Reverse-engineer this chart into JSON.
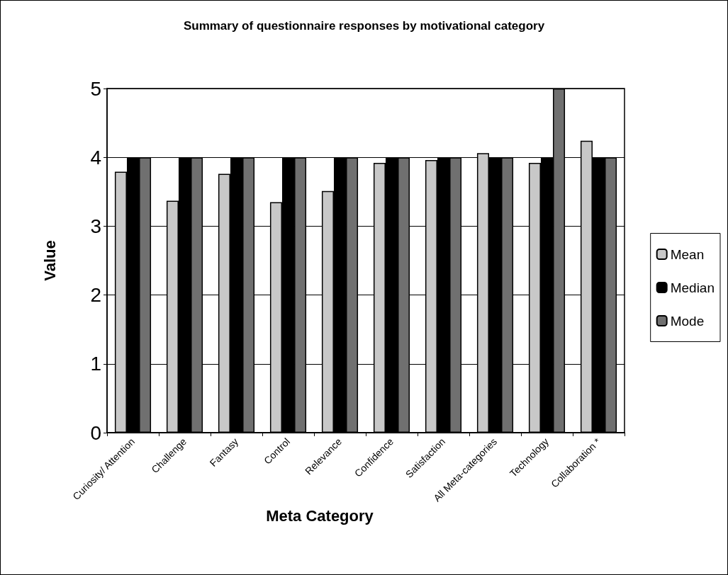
{
  "chart_data": {
    "type": "bar",
    "title": "Summary of questionnaire responses by motivational category",
    "xlabel": "Meta Category",
    "ylabel": "Value",
    "categories": [
      "Curiosity/ Attention",
      "Challenge",
      "Fantasy",
      "Control",
      "Relevance",
      "Confidence",
      "Satisfaction",
      "All Meta-categories",
      "Technology",
      "Collaboration *"
    ],
    "series": [
      {
        "name": "Mean",
        "color": "#c8c8c8",
        "values": [
          3.79,
          3.37,
          3.76,
          3.35,
          3.51,
          3.92,
          3.96,
          4.06,
          3.92,
          4.24
        ]
      },
      {
        "name": "Median",
        "color": "#000000",
        "values": [
          4,
          4,
          4,
          4,
          4,
          4,
          4,
          4,
          4,
          4
        ]
      },
      {
        "name": "Mode",
        "color": "#707070",
        "values": [
          4,
          4,
          4,
          4,
          4,
          4,
          4,
          4,
          5,
          4
        ]
      }
    ],
    "ylim": [
      0,
      5
    ],
    "yticks": [
      0,
      1,
      2,
      3,
      4,
      5
    ],
    "grid": "y",
    "legend": "right"
  }
}
